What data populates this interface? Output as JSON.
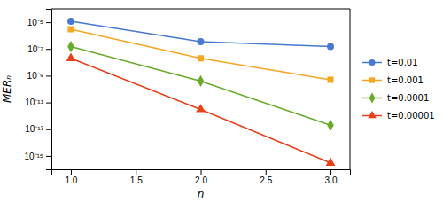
{
  "chart_data": {
    "type": "line",
    "x": [
      1,
      2,
      3
    ],
    "series": [
      {
        "name": "t=0.01",
        "color": "#4878cf",
        "marker": "circle",
        "values": [
          1.2e-05,
          3.5e-07,
          1.5e-07
        ]
      },
      {
        "name": "t=0.001",
        "color": "#f5a623",
        "marker": "square",
        "values": [
          3e-06,
          2e-08,
          5e-10
        ]
      },
      {
        "name": "t=0.0001",
        "color": "#6aaa2a",
        "marker": "diamond",
        "values": [
          1.5e-07,
          4e-10,
          2e-13
        ]
      },
      {
        "name": "t=0.00001",
        "color": "#e8401a",
        "marker": "triangle",
        "values": [
          2e-08,
          3e-12,
          3e-16
        ]
      }
    ],
    "xlabel": "n",
    "ylabel": "MERₙ",
    "xlim": [
      0.85,
      3.15
    ],
    "xticks": [
      {
        "value": 1.0,
        "label": "1.0"
      },
      1.5,
      {
        "value": 2.0,
        "label": "2.0"
      },
      2.5,
      {
        "value": 3.0,
        "label": "3.0"
      }
    ],
    "ylim": [
      1e-16,
      0.0001
    ],
    "yticks": [
      {
        "value": 1e-05,
        "label": "10⁻⁵"
      },
      {
        "value": 1e-07,
        "label": "10⁻⁷"
      },
      {
        "value": 1e-09,
        "label": "10⁻⁹"
      },
      {
        "value": 1e-11,
        "label": "10⁻¹¹"
      },
      {
        "value": 1e-13,
        "label": "10⁻¹³"
      },
      {
        "value": 1e-15,
        "label": "10⁻¹⁵"
      }
    ],
    "log": "y",
    "grid": false,
    "legend": "right"
  }
}
